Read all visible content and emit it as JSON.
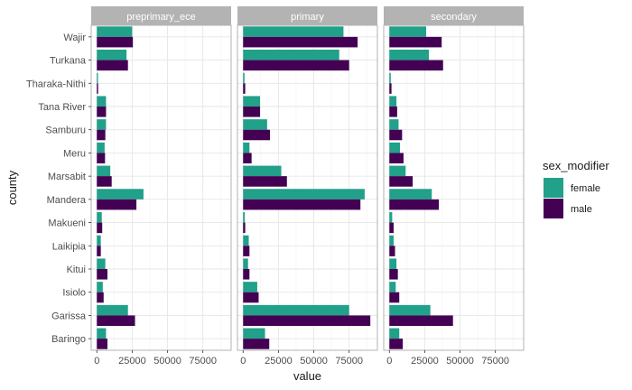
{
  "chart_data": {
    "type": "bar",
    "orientation": "horizontal",
    "facet_by": "level",
    "facets": [
      "preprimary_ece",
      "primary",
      "secondary"
    ],
    "categories": [
      "Wajir",
      "Turkana",
      "Tharaka-Nithi",
      "Tana River",
      "Samburu",
      "Meru",
      "Marsabit",
      "Mandera",
      "Makueni",
      "Laikipia",
      "Kitui",
      "Isiolo",
      "Garissa",
      "Baringo"
    ],
    "series_names": [
      "female",
      "male"
    ],
    "colors": {
      "female": "#21a08a",
      "male": "#440154",
      "strip": "#b3b3b3",
      "panel_border": "#b3b3b3",
      "grid_major": "#e6e6e6",
      "grid_minor": "#f2f2f2"
    },
    "values": {
      "preprimary_ece": {
        "female": [
          25000,
          21000,
          800,
          6500,
          6500,
          5500,
          9500,
          33000,
          3500,
          2800,
          6000,
          4200,
          22000,
          6500
        ],
        "male": [
          25500,
          22000,
          900,
          6500,
          6000,
          5800,
          10500,
          28000,
          3800,
          2800,
          7500,
          4800,
          27000,
          7500
        ]
      },
      "primary": {
        "female": [
          71000,
          68000,
          1000,
          12000,
          17000,
          4500,
          27000,
          86000,
          1200,
          4000,
          3500,
          10000,
          75000,
          15500
        ],
        "male": [
          81000,
          75000,
          1500,
          12000,
          19000,
          6000,
          31000,
          83000,
          1500,
          4500,
          4500,
          11000,
          90000,
          18500
        ]
      },
      "secondary": {
        "female": [
          26000,
          28000,
          1000,
          5000,
          6500,
          7500,
          11500,
          30000,
          2000,
          3000,
          5000,
          4500,
          29000,
          7000
        ],
        "male": [
          37000,
          38000,
          1500,
          5500,
          9000,
          10000,
          16500,
          35000,
          3000,
          4000,
          6000,
          7000,
          45000,
          9500
        ]
      }
    },
    "xlim": [
      -4000,
      95000
    ],
    "x_ticks": [
      0,
      25000,
      50000,
      75000
    ],
    "x_tick_labels": [
      "0",
      "25000",
      "50000",
      "75000"
    ],
    "xlabel": "value",
    "ylabel": "county",
    "grid": true,
    "legend": {
      "title": "sex_modifier",
      "position": "right",
      "entries": [
        "female",
        "male"
      ]
    }
  }
}
